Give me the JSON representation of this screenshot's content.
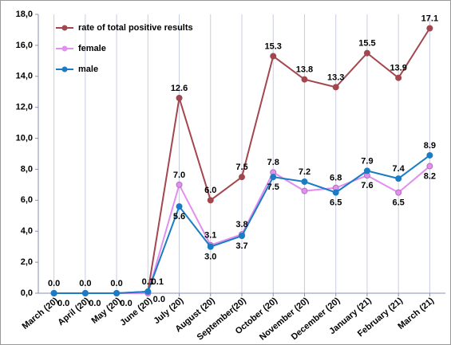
{
  "chart_data": {
    "type": "line",
    "categories": [
      "March (20)",
      "April (20)",
      "May (20)",
      "June (20)",
      "July (20)",
      "August (20)",
      "September(20)",
      "October (20)",
      "November (20)",
      "December (20)",
      "January (21)",
      "February (21)",
      "March  (21)"
    ],
    "series": [
      {
        "name": "rate of total positive results",
        "color": "#a3474f",
        "values": [
          0.0,
          0.0,
          0.0,
          0.1,
          12.6,
          6.0,
          7.5,
          15.3,
          13.8,
          13.3,
          15.5,
          13.9,
          17.1
        ],
        "value_labels": [
          "0.0",
          "0.0",
          "0.0",
          "0.1",
          "12.6",
          "6.0",
          "7.5",
          "15.3",
          "13.8",
          "13.3",
          "15.5",
          "13.9",
          "17.1"
        ]
      },
      {
        "name": "female",
        "color": "#e28ff0",
        "values": [
          0.0,
          0.0,
          0.0,
          0.0,
          7.0,
          3.1,
          3.8,
          7.8,
          6.6,
          6.8,
          7.6,
          6.5,
          8.2
        ],
        "value_labels": [
          null,
          null,
          null,
          "0.0",
          "7.0",
          "3.1",
          "3.8",
          "7.8",
          null,
          "6.8",
          "7.6",
          "6.5",
          "8.2"
        ]
      },
      {
        "name": "male",
        "color": "#1a7cc4",
        "values": [
          0.0,
          0.0,
          0.0,
          0.1,
          5.6,
          3.0,
          3.7,
          7.5,
          7.2,
          6.5,
          7.9,
          7.4,
          8.9
        ],
        "value_labels": [
          "0.0",
          "0.0",
          "0.0",
          "0.1",
          "5.6",
          "3.0",
          "3.7",
          "7.5",
          "7.2",
          "6.5",
          "7.9",
          "7.4",
          "8.9"
        ]
      }
    ],
    "ylim": [
      0,
      18
    ],
    "yticks": [
      {
        "value": 0,
        "label": "0,0"
      },
      {
        "value": 2,
        "label": "2,0"
      },
      {
        "value": 4,
        "label": "4,0"
      },
      {
        "value": 6,
        "label": "6,0"
      },
      {
        "value": 8,
        "label": "8,0"
      },
      {
        "value": 10,
        "label": "10,0"
      },
      {
        "value": 12,
        "label": "12,0"
      },
      {
        "value": 14,
        "label": "14,0"
      },
      {
        "value": 16,
        "label": "16,0"
      },
      {
        "value": 18,
        "label": "18,0"
      }
    ],
    "grid": true,
    "legend": "upper left"
  }
}
